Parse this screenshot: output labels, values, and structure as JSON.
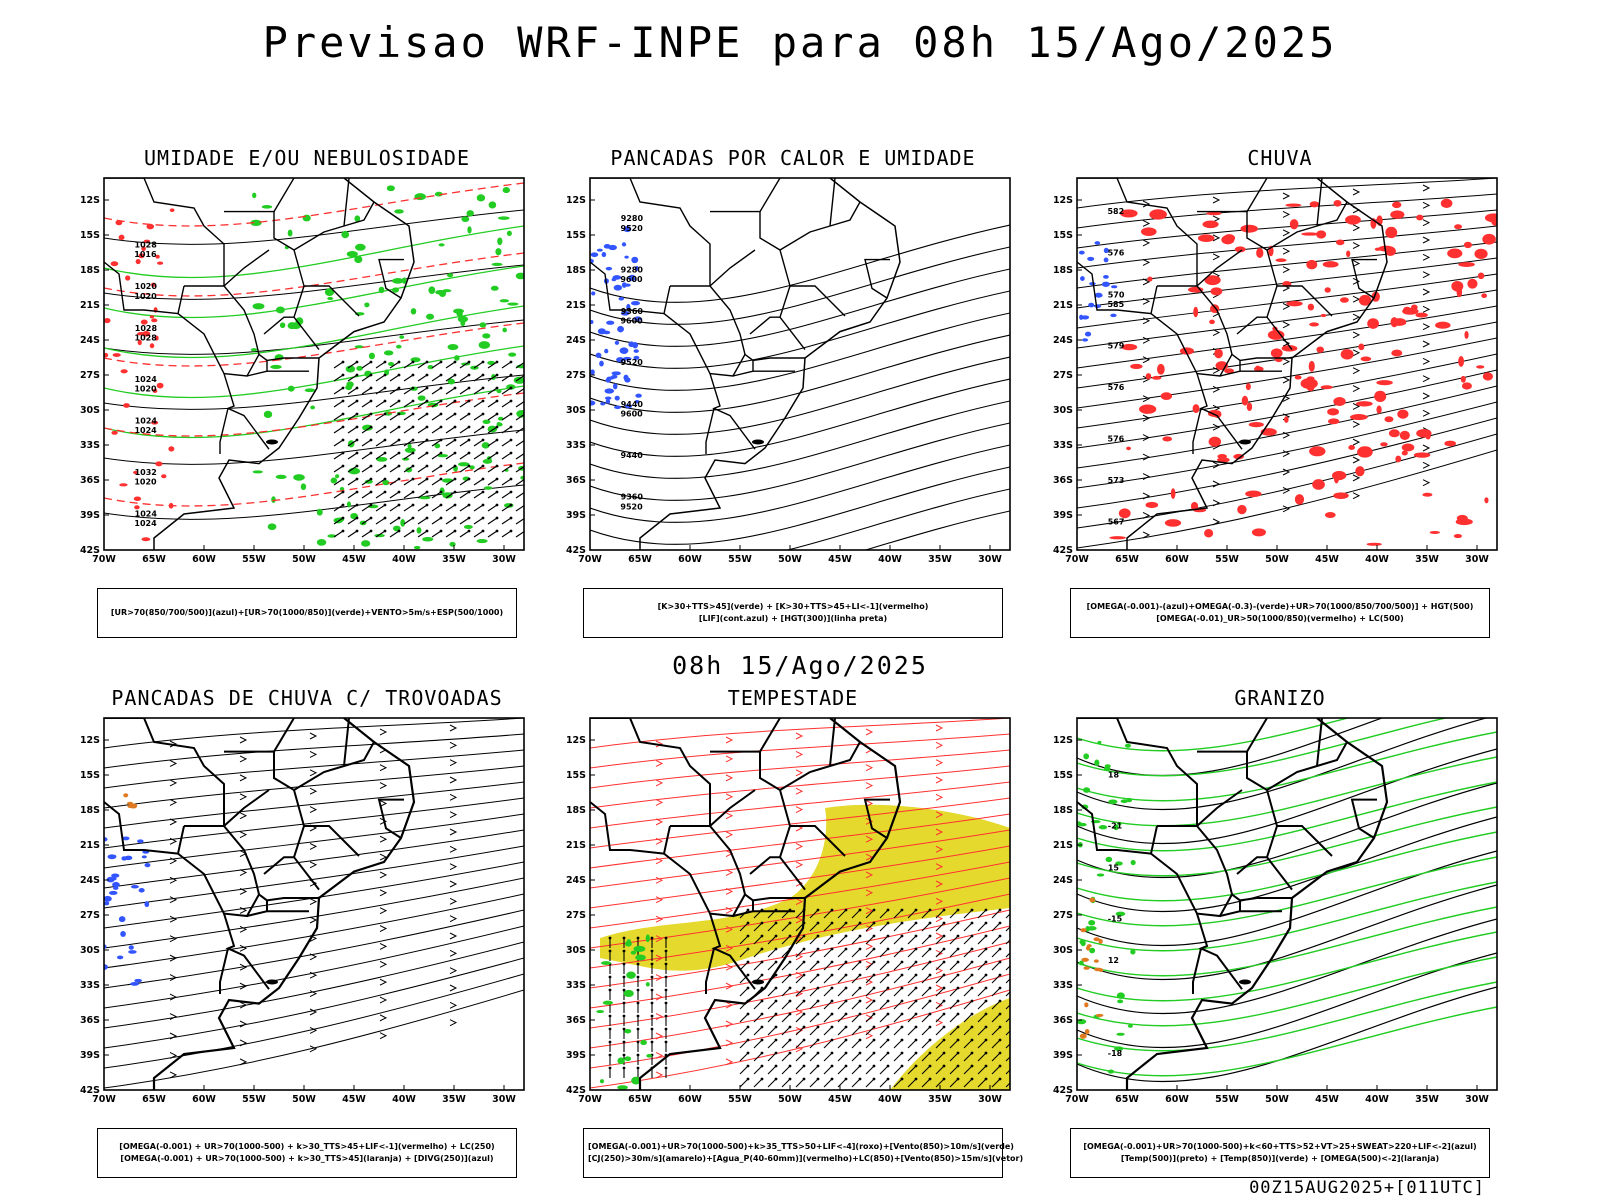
{
  "main_title": "Previsao WRF-INPE  para 08h 15/Ago/2025",
  "subtitle": "08h 15/Ago/2025",
  "footer": "00Z15AUG2025+[011UTC]",
  "lat_labels": [
    "12S",
    "15S",
    "18S",
    "21S",
    "24S",
    "27S",
    "30S",
    "33S",
    "36S",
    "39S",
    "42S"
  ],
  "lon_labels": [
    "70W",
    "65W",
    "60W",
    "55W",
    "50W",
    "45W",
    "40W",
    "35W",
    "30W"
  ],
  "panels": [
    {
      "title": "UMIDADE E/OU NEBULOSIDADE",
      "legend": [
        "[UR>70(850/700/500)](azul)+[UR>70(1000/850)](verde)+VENTO>5m/s+ESP(500/1000)"
      ],
      "labels": [
        "1016",
        "1020",
        "1020",
        "1020",
        "1024",
        "1024",
        "1028",
        "1028",
        "1032",
        "1024",
        "1020",
        "1024",
        "1024",
        "1028"
      ]
    },
    {
      "title": "PANCADAS POR CALOR E UMIDADE",
      "legend": [
        "[K>30+TTS>45](verde) + [K>30+TTS>45+LI<-1](vermelho)",
        "[LIF](cont.azul) + [HGT(300)](linha preta)"
      ],
      "labels": [
        "9600",
        "9520",
        "9600",
        "9600",
        "9520",
        "9440",
        "9520",
        "9280",
        "9360",
        "9440",
        "9360",
        "9280"
      ]
    },
    {
      "title": "CHUVA",
      "legend": [
        "[OMEGA(-0.001)-(azul)+OMEGA(-0.3)-(verde)+UR>70(1000/850/700/500)] + HGT(500)",
        "[OMEGA(-0.01)_UR>50(1000/850)(vermelho) + LC(500)"
      ],
      "labels": [
        "585",
        "582",
        "576",
        "579",
        "576",
        "573",
        "576",
        "570",
        "567"
      ]
    },
    {
      "title": "PANCADAS DE CHUVA C/ TROVOADAS",
      "legend": [
        "[OMEGA(-0.001) + UR>70(1000-500) + k>30_TTS>45+LIF<-1](vermelho) + LC(250)",
        "[OMEGA(-0.001) + UR>70(1000-500) + k>30_TTS>45](laranja) + [DIVG(250)](azul)"
      ],
      "labels": []
    },
    {
      "title": "TEMPESTADE",
      "legend": [
        "[OMEGA(-0.001)+UR>70(1000-500)+k>35_TTS>50+LIF<-4](roxo)+[Vento(850)>10m/s](verde)",
        "[CJ(250)>30m/s](amarelo)+[Agua_P(40-60mm)](vermelho)+LC(850)+[Vento(850)>15m/s](vetor)"
      ],
      "labels": []
    },
    {
      "title": "GRANIZO",
      "legend": [
        "[OMEGA(-0.001)+UR>70(1000-500)+k<60+TTS>52+VT>25+SWEAT>220+LIF<-2](azul)",
        "[Temp(500)](preto) + [Temp(850)](verde) + [OMEGA(500)<-2](laranja)"
      ],
      "labels": [
        "-15",
        "-21",
        "-18",
        "12",
        "15",
        "18"
      ]
    }
  ],
  "colors": {
    "green": "#22cc22",
    "red": "#ff3030",
    "blue": "#3355ff",
    "yellow": "#e6d92e",
    "orange": "#e07a20",
    "black": "#000000"
  }
}
